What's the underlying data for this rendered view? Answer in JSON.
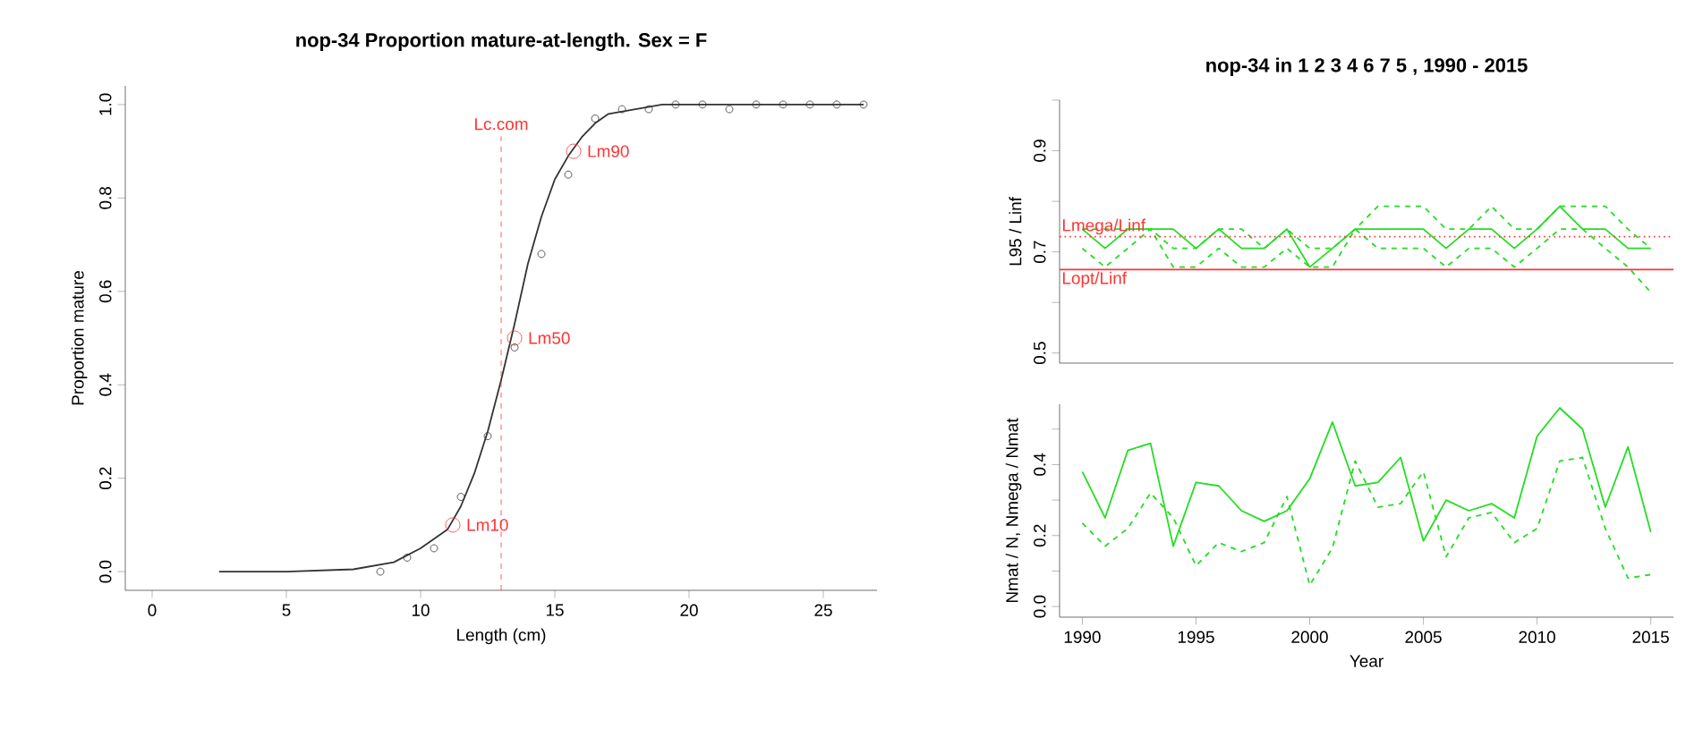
{
  "chart_data": [
    {
      "type": "scatter",
      "title": "nop-34 Proportion mature-at-length. Sex = F",
      "xlabel": "Length (cm)",
      "ylabel": "Proportion mature",
      "xlim": [
        -1,
        27
      ],
      "xticks": [
        0,
        5,
        10,
        15,
        20,
        25
      ],
      "ylim": [
        -0.04,
        1.04
      ],
      "yticks": [
        {
          "value": 0,
          "label": "0.0"
        },
        0.2,
        0.4,
        0.6,
        0.8,
        {
          "value": 1,
          "label": "1.0"
        }
      ],
      "series": [
        {
          "type": "scatter",
          "marker": "circle",
          "color": "#333333",
          "x": [
            8.5,
            9.5,
            10.5,
            11.5,
            12.5,
            13.5,
            14.5,
            15.5,
            16.5,
            17.5,
            18.5,
            19.5,
            20.5,
            21.5,
            22.5,
            23.5,
            24.5,
            25.5,
            26.5
          ],
          "values": [
            0,
            0.03,
            0.05,
            0.16,
            0.29,
            0.48,
            0.68,
            0.85,
            0.97,
            0.99,
            0.99,
            1,
            1,
            0.99,
            1,
            1,
            1,
            1,
            1
          ]
        },
        {
          "type": "line",
          "color": "#333333",
          "x": [
            2.5,
            5,
            7.5,
            9,
            10,
            11,
            11.5,
            12,
            12.5,
            13,
            13.5,
            14,
            14.5,
            15,
            15.5,
            16,
            16.5,
            17,
            18,
            19,
            26.5
          ],
          "values": [
            0,
            0,
            0.005,
            0.02,
            0.05,
            0.09,
            0.14,
            0.21,
            0.3,
            0.41,
            0.53,
            0.66,
            0.76,
            0.84,
            0.89,
            0.93,
            0.96,
            0.98,
            0.99,
            1,
            1
          ]
        }
      ],
      "ref_lines": [
        {
          "axis": "x",
          "value": 13,
          "label": "Lc.com",
          "color": "#ff3333",
          "line_style": "dashed"
        }
      ],
      "annotations": [
        {
          "text": "Lm10",
          "x": 11.2,
          "y": 0.1
        },
        {
          "text": "Lm50",
          "x": 13.5,
          "y": 0.5
        },
        {
          "text": "Lm90",
          "x": 15.7,
          "y": 0.9
        }
      ]
    },
    {
      "type": "line",
      "title": "nop-34 in 1 2 3 4 6 7 5 , 1990 - 2015",
      "ylabel": "L95 / Linf",
      "tick_labels": "y",
      "x": [
        1990,
        1991,
        1992,
        1993,
        1994,
        1995,
        1996,
        1997,
        1998,
        1999,
        2000,
        2001,
        2002,
        2003,
        2004,
        2005,
        2006,
        2007,
        2008,
        2009,
        2010,
        2011,
        2012,
        2013,
        2014,
        2015
      ],
      "xlim": [
        1989,
        2016
      ],
      "ylim": [
        0.48,
        1.0
      ],
      "yticks": [
        0.5,
        {
          "value": 0.6,
          "label": null
        },
        0.7,
        {
          "value": 0.8,
          "label": null
        },
        0.9,
        {
          "value": 1.0,
          "label": null
        }
      ],
      "series": [
        {
          "color": "#22dd22",
          "line_style": "solid",
          "values": [
            0.745,
            0.707,
            0.745,
            0.745,
            0.745,
            0.707,
            0.745,
            0.707,
            0.707,
            0.745,
            0.67,
            0.707,
            0.745,
            0.745,
            0.745,
            0.745,
            0.707,
            0.745,
            0.745,
            0.707,
            0.745,
            0.79,
            0.745,
            0.745,
            0.707,
            0.707
          ]
        },
        {
          "color": "#22dd22",
          "line_style": "dashed",
          "values": [
            0.745,
            0.745,
            0.745,
            0.745,
            0.707,
            0.707,
            0.745,
            0.745,
            0.707,
            0.745,
            0.707,
            0.707,
            0.745,
            0.79,
            0.79,
            0.79,
            0.745,
            0.745,
            0.79,
            0.745,
            0.745,
            0.79,
            0.79,
            0.79,
            0.745,
            0.707
          ]
        },
        {
          "color": "#22dd22",
          "line_style": "dashed",
          "values": [
            0.707,
            0.67,
            0.707,
            0.745,
            0.67,
            0.67,
            0.707,
            0.67,
            0.67,
            0.707,
            0.67,
            0.67,
            0.745,
            0.707,
            0.707,
            0.707,
            0.67,
            0.707,
            0.707,
            0.67,
            0.707,
            0.745,
            0.745,
            0.707,
            0.67,
            0.62
          ]
        }
      ],
      "ref_lines": [
        {
          "axis": "y",
          "value": 0.73,
          "label": "Lmega/Linf",
          "color": "#ff3333",
          "line_style": "dotted"
        },
        {
          "axis": "y",
          "value": 0.665,
          "label": "Lopt/Linf",
          "color": "#ff3333",
          "line_style": "solid"
        }
      ]
    },
    {
      "type": "line",
      "xlabel": "Year",
      "ylabel": "Nmat / N, Nmega / Nmat",
      "x": [
        1990,
        1991,
        1992,
        1993,
        1994,
        1995,
        1996,
        1997,
        1998,
        1999,
        2000,
        2001,
        2002,
        2003,
        2004,
        2005,
        2006,
        2007,
        2008,
        2009,
        2010,
        2011,
        2012,
        2013,
        2014,
        2015
      ],
      "xlim": [
        1989,
        2016
      ],
      "xticks": [
        1990,
        1995,
        2000,
        2005,
        2010,
        2015
      ],
      "ylim": [
        -0.03,
        0.57
      ],
      "yticks": [
        {
          "value": 0,
          "label": "0.0"
        },
        {
          "value": 0.1,
          "label": null
        },
        0.2,
        {
          "value": 0.3,
          "label": null
        },
        0.4,
        {
          "value": 0.5,
          "label": null
        }
      ],
      "series": [
        {
          "color": "#22dd22",
          "line_style": "solid",
          "values": [
            0.38,
            0.25,
            0.44,
            0.46,
            0.17,
            0.35,
            0.34,
            0.27,
            0.24,
            0.27,
            0.36,
            0.52,
            0.34,
            0.35,
            0.42,
            0.185,
            0.3,
            0.27,
            0.29,
            0.25,
            0.48,
            0.56,
            0.5,
            0.28,
            0.45,
            0.21
          ]
        },
        {
          "color": "#22dd22",
          "line_style": "dashed",
          "values": [
            0.235,
            0.17,
            0.22,
            0.32,
            0.25,
            0.115,
            0.18,
            0.155,
            0.18,
            0.31,
            0.06,
            0.165,
            0.41,
            0.28,
            0.29,
            0.38,
            0.14,
            0.25,
            0.265,
            0.18,
            0.22,
            0.41,
            0.42,
            0.22,
            0.08,
            0.09
          ]
        }
      ]
    }
  ]
}
